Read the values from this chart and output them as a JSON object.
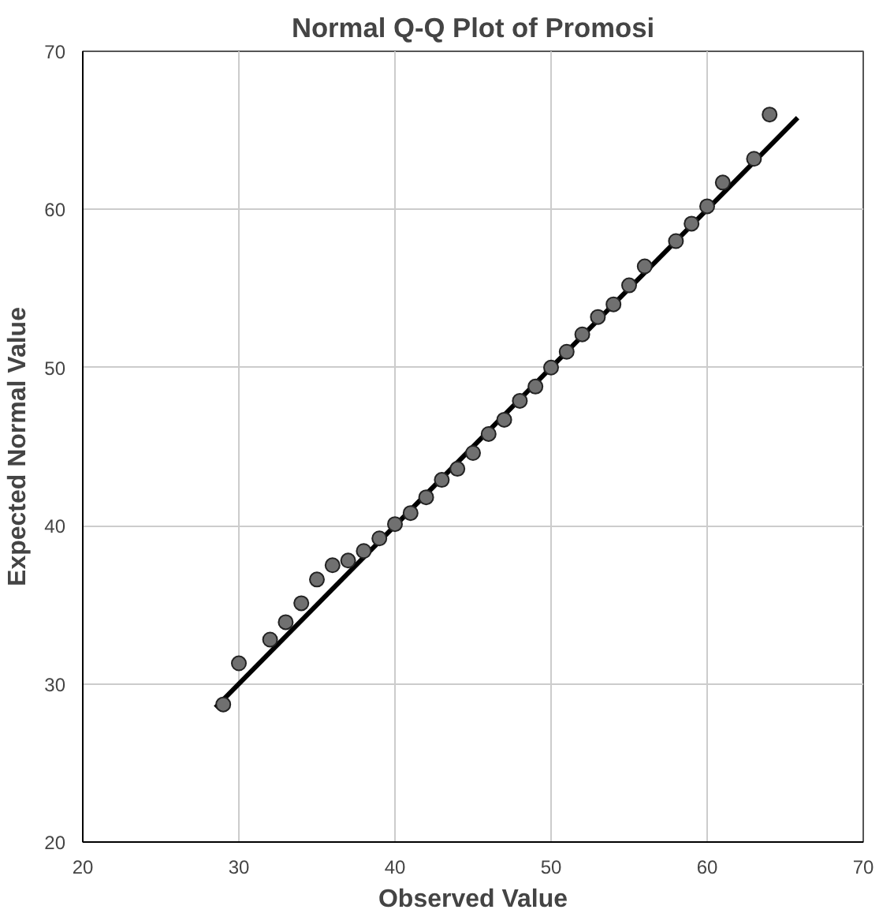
{
  "chart_data": {
    "type": "scatter",
    "title": "Normal Q-Q Plot of Promosi",
    "xlabel": "Observed Value",
    "ylabel": "Expected Normal Value",
    "xlim": [
      20,
      70
    ],
    "ylim": [
      20,
      70
    ],
    "xticks": [
      20,
      30,
      40,
      50,
      60,
      70
    ],
    "yticks": [
      20,
      30,
      40,
      50,
      60,
      70
    ],
    "grid": true,
    "marker": "circle",
    "series": [
      {
        "color": "#707070",
        "x": [
          29,
          30,
          32,
          33,
          34,
          35,
          36,
          37,
          38,
          39,
          40,
          41,
          42,
          43,
          44,
          45,
          46,
          47,
          48,
          49,
          50,
          51,
          52,
          53,
          54,
          55,
          56,
          58,
          59,
          60,
          61,
          63,
          64
        ],
        "values": [
          28.7,
          31.3,
          32.8,
          33.9,
          35.1,
          36.6,
          37.5,
          37.8,
          38.4,
          39.2,
          40.1,
          40.8,
          41.8,
          42.9,
          43.6,
          44.6,
          45.8,
          46.7,
          47.9,
          48.8,
          50.0,
          51.0,
          52.1,
          53.2,
          54.0,
          55.2,
          56.4,
          58.0,
          59.1,
          60.2,
          61.7,
          63.2,
          66.0
        ]
      },
      {
        "type": "line",
        "color": "#000000",
        "line_style": "solid",
        "marker": "none",
        "x": [
          28.5,
          65.8
        ],
        "values": [
          28.5,
          65.8
        ]
      }
    ]
  }
}
